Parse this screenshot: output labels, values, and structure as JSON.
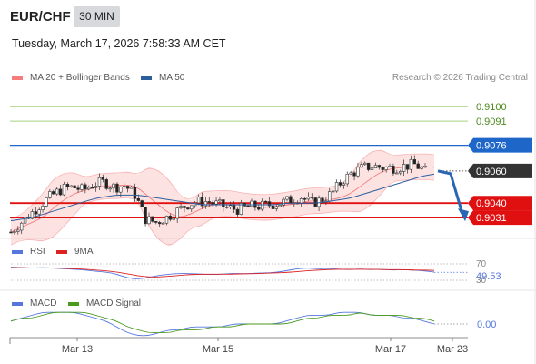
{
  "header": {
    "pair": "EUR/CHF",
    "timeframe": "30 MIN",
    "timestamp": "Tuesday, March 17, 2026 7:58:33 AM CET",
    "credit": "Research © 2026 Trading Central"
  },
  "legend": {
    "bollinger": "MA 20 + Bollinger Bands",
    "ma50": "MA 50",
    "rsi": "RSI",
    "rsi_ma": "9MA",
    "macd": "MACD",
    "macd_signal": "MACD Signal"
  },
  "colors": {
    "bollinger": "#f47c7c",
    "ma50": "#2d5f9e",
    "resistance": "#a8d080",
    "pivot": "#1f66c9",
    "support": "#e01010",
    "last": "#333333",
    "rsi": "#5577dd",
    "rsi_ma": "#dd2222",
    "macd": "#5577dd",
    "macd_signal": "#4a9a1e"
  },
  "chart_data": [
    {
      "type": "candlestick",
      "title": "EUR/CHF 30 MIN",
      "x_tick_labels": [
        "Mar 13",
        "Mar 15",
        "Mar 17",
        "Mar 23"
      ],
      "price_levels": [
        {
          "value": 0.91,
          "label": "0.9100",
          "kind": "resistance"
        },
        {
          "value": 0.9091,
          "label": "0.9091",
          "kind": "resistance"
        },
        {
          "value": 0.9076,
          "label": "0.9076",
          "kind": "pivot"
        },
        {
          "value": 0.906,
          "label": "0.9060",
          "kind": "last"
        },
        {
          "value": 0.904,
          "label": "0.9040",
          "kind": "support"
        },
        {
          "value": 0.9031,
          "label": "0.9031",
          "kind": "support"
        }
      ],
      "ylim": [
        0.9022,
        0.9112
      ],
      "close_series": [
        0.9022,
        0.9028,
        0.9034,
        0.904,
        0.9045,
        0.9049,
        0.905,
        0.9048,
        0.9052,
        0.9053,
        0.905,
        0.9051,
        0.9045,
        0.903,
        0.9028,
        0.9031,
        0.9035,
        0.9039,
        0.9041,
        0.9041,
        0.9039,
        0.9037,
        0.9036,
        0.9038,
        0.9038,
        0.9039,
        0.904,
        0.9042,
        0.9044,
        0.904,
        0.9042,
        0.9046,
        0.9054,
        0.9059,
        0.9062,
        0.9063,
        0.9062,
        0.9062,
        0.9063,
        0.9064,
        0.906
      ],
      "ma50_series": [
        0.9029,
        0.903,
        0.9031,
        0.9033,
        0.9035,
        0.9037,
        0.9039,
        0.9041,
        0.9043,
        0.9044,
        0.9045,
        0.9045,
        0.9045,
        0.9044,
        0.9043,
        0.9042,
        0.9041,
        0.904,
        0.9039,
        0.9039,
        0.9039,
        0.9039,
        0.9039,
        0.9039,
        0.9039,
        0.9039,
        0.904,
        0.904,
        0.904,
        0.904,
        0.9041,
        0.9042,
        0.9043,
        0.9045,
        0.9047,
        0.9049,
        0.9051,
        0.9053,
        0.9055,
        0.9057,
        0.9058
      ],
      "projection": [
        0.906,
        0.9031
      ]
    },
    {
      "type": "line",
      "title": "RSI",
      "ylim": [
        30,
        70
      ],
      "y_ticks": [
        30,
        70
      ],
      "last_value_label": "49.53",
      "series": [
        {
          "name": "RSI",
          "values": [
            62,
            61,
            60,
            61,
            60,
            58,
            57,
            55,
            52,
            50,
            45,
            36,
            33,
            37,
            42,
            45,
            47,
            46,
            45,
            44,
            45,
            47,
            46,
            47,
            48,
            49,
            53,
            58,
            60,
            58,
            59,
            57,
            56,
            58,
            56,
            57,
            55,
            56,
            55,
            53,
            50
          ]
        },
        {
          "name": "9MA",
          "values": [
            61,
            61,
            60,
            60,
            60,
            59,
            58,
            57,
            55,
            53,
            50,
            46,
            41,
            38,
            38,
            40,
            42,
            44,
            45,
            45,
            45,
            45,
            46,
            46,
            47,
            48,
            49,
            51,
            53,
            55,
            56,
            57,
            57,
            57,
            57,
            56,
            56,
            56,
            55,
            55,
            54
          ]
        }
      ]
    },
    {
      "type": "line",
      "title": "MACD",
      "ylim": [
        -0.0005,
        0.0005
      ],
      "y_ticks": [
        0
      ],
      "last_value_label": "0.00",
      "series": [
        {
          "name": "MACD",
          "values": [
            0.0001,
            0.0002,
            0.0003,
            0.0004,
            0.0004,
            0.0004,
            0.0004,
            0.0003,
            0.0002,
            0.0001,
            -0.0001,
            -0.0003,
            -0.0004,
            -0.0004,
            -0.0003,
            -0.0002,
            -0.0002,
            -0.0001,
            -0.0001,
            -0.0001,
            -0.0001,
            0.0,
            0.0,
            0.0,
            0.0,
            0.0,
            0.0001,
            0.0002,
            0.0003,
            0.0003,
            0.0003,
            0.0004,
            0.0004,
            0.0004,
            0.0003,
            0.0003,
            0.0003,
            0.0002,
            0.0002,
            0.0001,
            0.0
          ]
        },
        {
          "name": "MACD Signal",
          "values": [
            0.0001,
            0.0002,
            0.0002,
            0.0003,
            0.0004,
            0.0004,
            0.0004,
            0.0004,
            0.0003,
            0.0002,
            0.0001,
            -0.0001,
            -0.0002,
            -0.0003,
            -0.0003,
            -0.0003,
            -0.0002,
            -0.0002,
            -0.0002,
            -0.0001,
            -0.0001,
            -0.0001,
            0.0,
            0.0,
            0.0,
            0.0,
            0.0,
            0.0001,
            0.0002,
            0.0002,
            0.0003,
            0.0003,
            0.0003,
            0.0004,
            0.0003,
            0.0003,
            0.0003,
            0.0003,
            0.0002,
            0.0002,
            0.0001
          ]
        }
      ]
    }
  ]
}
